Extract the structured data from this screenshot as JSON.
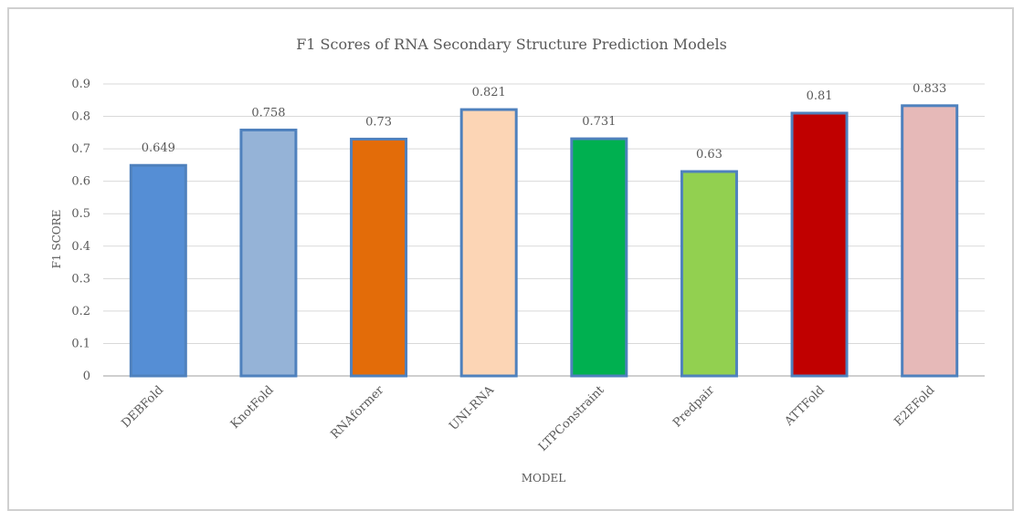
{
  "chart_data": {
    "type": "bar",
    "title": "F1 Scores of RNA Secondary Structure Prediction Models",
    "xlabel": "MODEL",
    "ylabel": "F1 SCORE",
    "categories": [
      "DEBFold",
      "KnotFold",
      "RNAformer",
      "UNI-RNA",
      "LTPConstraint",
      "Predpair",
      "ATTFold",
      "E2EFold"
    ],
    "values": [
      0.649,
      0.758,
      0.73,
      0.821,
      0.731,
      0.63,
      0.81,
      0.833
    ],
    "data_labels": [
      "0.649",
      "0.758",
      "0.73",
      "0.821",
      "0.731",
      "0.63",
      "0.81",
      "0.833"
    ],
    "colors": [
      "#558ed5",
      "#95b3d7",
      "#e36c09",
      "#fcd5b5",
      "#00b050",
      "#92d050",
      "#c00000",
      "#e6b9b8"
    ],
    "bar_border_color": "#4f81bd",
    "ylim": [
      0,
      0.9
    ],
    "yticks": [
      "0",
      "0.1",
      "0.2",
      "0.3",
      "0.4",
      "0.5",
      "0.6",
      "0.7",
      "0.8",
      "0.9"
    ],
    "grid": true,
    "legend": "none"
  }
}
